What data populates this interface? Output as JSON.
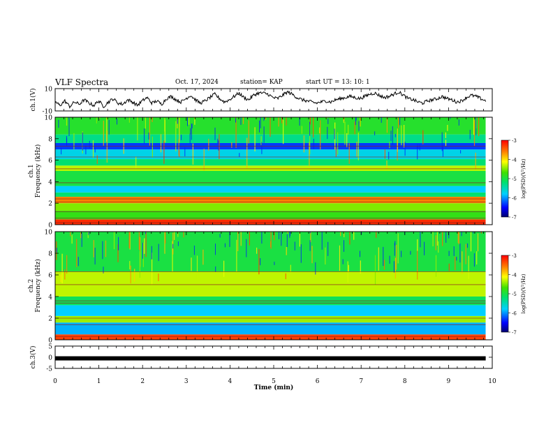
{
  "header": {
    "title": "VLF Spectra",
    "date": "Oct. 17, 2024",
    "station": "station= KAP",
    "start": "start  UT  =   13: 10: 1"
  },
  "chart_data": [
    {
      "type": "line",
      "panel": "ch1-waveform",
      "ylabel": "ch.1(V)",
      "ylim": [
        -10,
        10
      ],
      "yticks": [
        "10",
        "-10"
      ],
      "xlim": [
        0,
        10
      ],
      "x_end_min": 9.85,
      "color": "#000000",
      "values": [
        -2,
        -5,
        -1,
        -6,
        -2,
        -4,
        0,
        -3,
        -5,
        -1,
        -6,
        -2,
        1,
        -3,
        -4,
        0,
        -2,
        -5,
        -1,
        2,
        -3,
        -1,
        -4,
        1,
        3,
        0,
        -2,
        1,
        4,
        0,
        -3,
        -1,
        2,
        5,
        1,
        -2,
        0,
        3,
        6,
        2,
        0,
        4,
        6,
        6,
        5,
        2,
        1,
        4,
        7,
        5,
        2,
        0,
        -1,
        -2,
        -3,
        -2,
        -1,
        -2,
        0,
        1,
        2,
        3,
        2,
        1,
        3,
        5,
        6,
        4,
        2,
        3,
        5,
        7,
        4,
        1,
        0,
        -2,
        -3,
        -1,
        0,
        1,
        3,
        1,
        0,
        -2,
        -1,
        2,
        4,
        3,
        1,
        -1
      ]
    },
    {
      "type": "heatmap",
      "panel": "ch1-spectrogram",
      "ylabel_top": "ch.1",
      "ylabel": "Frequency  (kHz)",
      "ylim": [
        0,
        10
      ],
      "yticks": [
        "0",
        "2",
        "4",
        "6",
        "8",
        "10"
      ],
      "xlim": [
        0,
        10
      ],
      "x_end_min": 9.85,
      "colorbar": {
        "label": "log(PSD)(V²/Hz)",
        "range": [
          -7,
          -3
        ],
        "ticks": [
          "-3",
          "-4",
          "-5",
          "-6",
          "-7"
        ]
      },
      "bands_khz": [
        {
          "from": 0.0,
          "to": 0.5,
          "level": -3.2
        },
        {
          "from": 0.5,
          "to": 1.3,
          "level": -4.8
        },
        {
          "from": 1.3,
          "to": 2.0,
          "level": -4.5
        },
        {
          "from": 2.0,
          "to": 2.6,
          "level": -3.6
        },
        {
          "from": 2.6,
          "to": 3.0,
          "level": -5.2
        },
        {
          "from": 3.0,
          "to": 3.6,
          "level": -5.8
        },
        {
          "from": 3.6,
          "to": 5.0,
          "level": -5.0
        },
        {
          "from": 5.0,
          "to": 5.5,
          "level": -4.3
        },
        {
          "from": 5.5,
          "to": 6.1,
          "level": -5.2
        },
        {
          "from": 6.1,
          "to": 7.0,
          "level": -5.7
        },
        {
          "from": 7.0,
          "to": 7.6,
          "level": -6.3
        },
        {
          "from": 7.6,
          "to": 8.4,
          "level": -5.3
        },
        {
          "from": 8.4,
          "to": 10.0,
          "level": -4.9
        }
      ],
      "lines_khz": [
        0.2,
        0.6,
        1.2,
        2.1,
        2.4,
        3.9,
        5.2,
        6.3,
        7.3
      ]
    },
    {
      "type": "heatmap",
      "panel": "ch2-spectrogram",
      "ylabel_top": "ch.2",
      "ylabel": "Frequency  (kHz)",
      "ylim": [
        0,
        10
      ],
      "yticks": [
        "0",
        "2",
        "4",
        "6",
        "8",
        "10"
      ],
      "xlim": [
        0,
        10
      ],
      "x_end_min": 9.85,
      "colorbar": {
        "label": "log(PSD)(V²/Hz)",
        "range": [
          -7,
          -3
        ],
        "ticks": [
          "-3",
          "-4",
          "-5",
          "-6",
          "-7"
        ]
      },
      "bands_khz": [
        {
          "from": 0.0,
          "to": 0.5,
          "level": -3.3
        },
        {
          "from": 0.5,
          "to": 1.6,
          "level": -5.9
        },
        {
          "from": 1.6,
          "to": 2.2,
          "level": -4.4
        },
        {
          "from": 2.2,
          "to": 3.2,
          "level": -5.8
        },
        {
          "from": 3.2,
          "to": 4.0,
          "level": -5.1
        },
        {
          "from": 4.0,
          "to": 6.3,
          "level": -4.3
        },
        {
          "from": 6.3,
          "to": 10.0,
          "level": -5.0
        }
      ],
      "lines_khz": [
        0.3,
        1.4,
        2.0,
        3.4,
        3.6,
        5.1,
        6.3
      ]
    },
    {
      "type": "line",
      "panel": "ch3-waveform",
      "ylabel": "ch.3(V)",
      "ylim": [
        -5,
        5
      ],
      "yticks": [
        "5",
        "0",
        "-5"
      ],
      "xlim": [
        0,
        10
      ],
      "x_end_min": 9.85,
      "xlabel": "Time  (min)",
      "xticks": [
        "0",
        "1",
        "2",
        "3",
        "4",
        "5",
        "6",
        "7",
        "8",
        "9",
        "10"
      ],
      "value": -0.5,
      "color": "#000000"
    }
  ]
}
